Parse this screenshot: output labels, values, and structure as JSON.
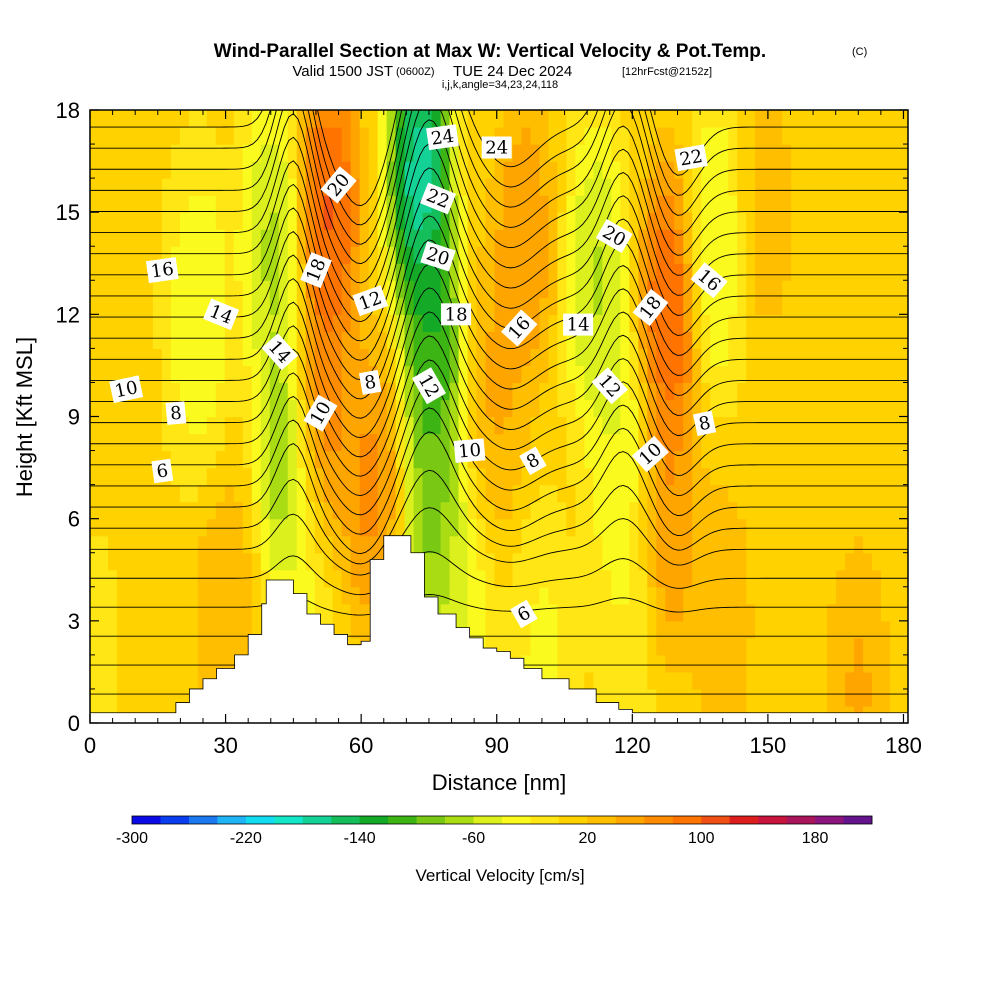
{
  "title": {
    "main": "Wind-Parallel Section at Max W: Vertical Velocity & Pot.Temp.",
    "main_tag": "(C)",
    "valid_prefix": "Valid 1500 JST",
    "valid_utc": "(0600Z)",
    "valid_date": "TUE 24 Dec 2024",
    "forecast_tag": "[12hrFcst@2152z]",
    "params": "i,j,k,angle=34,23,24,118"
  },
  "chart_data": {
    "type": "heatmap",
    "xlabel": "Distance [nm]",
    "ylabel": "Height [Kft MSL]",
    "xlim": [
      0,
      181
    ],
    "ylim": [
      0,
      18
    ],
    "xticks": [
      0,
      30,
      60,
      90,
      120,
      150,
      180
    ],
    "yticks": [
      0,
      3,
      6,
      9,
      12,
      15,
      18
    ],
    "grid": false,
    "colorbar": {
      "title": "Vertical Velocity [cm/s]",
      "placement": "bottom",
      "tick_labels": [
        "-300",
        "-220",
        "-140",
        "-60",
        "20",
        "100",
        "180"
      ],
      "tick_values": [
        -300,
        -220,
        -140,
        -60,
        20,
        100,
        180
      ],
      "bin_edges": [
        -300,
        -280,
        -260,
        -240,
        -220,
        -200,
        -180,
        -160,
        -140,
        -120,
        -100,
        -80,
        -60,
        -40,
        -20,
        0,
        20,
        40,
        60,
        80,
        100,
        120,
        140,
        160,
        180,
        200,
        220
      ],
      "bin_colors": [
        "#0a0ae6",
        "#0a3cf0",
        "#1a78f0",
        "#1eb4f5",
        "#14dcf0",
        "#14e6c8",
        "#14d296",
        "#14be5a",
        "#14aa28",
        "#3cb414",
        "#78c814",
        "#aadc14",
        "#dcf01e",
        "#fafa1e",
        "#ffe614",
        "#ffd200",
        "#ffbe00",
        "#ffa500",
        "#ff8c00",
        "#ff7300",
        "#f05014",
        "#dc1e1e",
        "#c8143c",
        "#aa145a",
        "#8c147d",
        "#64148c"
      ]
    },
    "vertical_velocity_field": {
      "units": "cm/s",
      "background": 5,
      "features": [
        {
          "x": 0,
          "z": 1.5,
          "value": -15
        },
        {
          "x": 24,
          "z": 12,
          "value": -60
        },
        {
          "x": 30,
          "z": 3,
          "value": 45
        },
        {
          "x": 40,
          "z": 14,
          "value": -90
        },
        {
          "x": 44,
          "z": 8,
          "value": -130
        },
        {
          "x": 47,
          "z": 4.5,
          "value": -40
        },
        {
          "x": 50,
          "z": 9,
          "value": 110
        },
        {
          "x": 53,
          "z": 15,
          "value": 130
        },
        {
          "x": 62,
          "z": 7,
          "value": 80
        },
        {
          "x": 73,
          "z": 16,
          "value": -240
        },
        {
          "x": 76,
          "z": 11,
          "value": -160
        },
        {
          "x": 76,
          "z": 6,
          "value": -120
        },
        {
          "x": 82,
          "z": 2.5,
          "value": -60
        },
        {
          "x": 90,
          "z": 10,
          "value": 50
        },
        {
          "x": 96,
          "z": 14,
          "value": 70
        },
        {
          "x": 100,
          "z": 1.5,
          "value": -40
        },
        {
          "x": 112,
          "z": 13,
          "value": -90
        },
        {
          "x": 117,
          "z": 8,
          "value": -60
        },
        {
          "x": 119,
          "z": 3,
          "value": -30
        },
        {
          "x": 128,
          "z": 12,
          "value": 130
        },
        {
          "x": 128,
          "z": 6,
          "value": 70
        },
        {
          "x": 138,
          "z": 14,
          "value": -60
        },
        {
          "x": 140,
          "z": 3,
          "value": 40
        },
        {
          "x": 150,
          "z": 15,
          "value": 30
        },
        {
          "x": 170,
          "z": 1,
          "value": 50
        }
      ]
    },
    "terrain_profile": {
      "x": [
        0,
        19,
        22,
        25,
        28,
        32,
        35,
        38,
        39,
        42,
        45,
        48,
        51,
        54,
        57,
        60,
        62,
        65,
        71,
        74,
        77,
        81,
        84,
        87,
        90,
        93,
        96,
        100,
        106,
        112,
        117,
        120,
        181
      ],
      "z": [
        0.3,
        0.6,
        1.0,
        1.3,
        1.6,
        2.0,
        2.6,
        3.5,
        4.2,
        4.2,
        3.8,
        3.2,
        2.9,
        2.6,
        2.3,
        2.4,
        4.8,
        5.5,
        5.0,
        3.7,
        3.2,
        2.8,
        2.5,
        2.2,
        2.1,
        1.9,
        1.6,
        1.3,
        1.0,
        0.6,
        0.4,
        0.3,
        0.3
      ]
    },
    "potential_temperature_contours": {
      "units": "C",
      "levels": [
        0,
        1,
        2,
        3,
        4,
        5,
        6,
        7,
        8,
        9,
        10,
        11,
        12,
        13,
        14,
        15,
        16,
        17,
        18,
        19,
        20,
        21,
        22,
        23,
        24,
        25,
        26
      ],
      "labels": [
        {
          "text": "24",
          "x": 78,
          "z": 17.2,
          "angle": -8
        },
        {
          "text": "24",
          "x": 90,
          "z": 16.9,
          "angle": 0
        },
        {
          "text": "22",
          "x": 133,
          "z": 16.6,
          "angle": -10
        },
        {
          "text": "20",
          "x": 55,
          "z": 15.8,
          "angle": -50
        },
        {
          "text": "22",
          "x": 77,
          "z": 15.4,
          "angle": 22
        },
        {
          "text": "20",
          "x": 116,
          "z": 14.3,
          "angle": 30
        },
        {
          "text": "16",
          "x": 16,
          "z": 13.3,
          "angle": -8
        },
        {
          "text": "18",
          "x": 50,
          "z": 13.3,
          "angle": -68
        },
        {
          "text": "20",
          "x": 77,
          "z": 13.7,
          "angle": 18
        },
        {
          "text": "16",
          "x": 137,
          "z": 13.0,
          "angle": 40
        },
        {
          "text": "14",
          "x": 29,
          "z": 12.0,
          "angle": 22
        },
        {
          "text": "12",
          "x": 62,
          "z": 12.4,
          "angle": -20
        },
        {
          "text": "18",
          "x": 81,
          "z": 12.0,
          "angle": 0
        },
        {
          "text": "16",
          "x": 95,
          "z": 11.6,
          "angle": -48
        },
        {
          "text": "14",
          "x": 108,
          "z": 11.7,
          "angle": 0
        },
        {
          "text": "18",
          "x": 124,
          "z": 12.2,
          "angle": -52
        },
        {
          "text": "14",
          "x": 42,
          "z": 10.9,
          "angle": 48
        },
        {
          "text": "12",
          "x": 75,
          "z": 9.9,
          "angle": 60
        },
        {
          "text": "12",
          "x": 115,
          "z": 9.9,
          "angle": 48
        },
        {
          "text": "10",
          "x": 8,
          "z": 9.8,
          "angle": -12
        },
        {
          "text": "8",
          "x": 62,
          "z": 10.0,
          "angle": -10
        },
        {
          "text": "8",
          "x": 19,
          "z": 9.1,
          "angle": -5
        },
        {
          "text": "10",
          "x": 51,
          "z": 9.1,
          "angle": -60
        },
        {
          "text": "8",
          "x": 136,
          "z": 8.8,
          "angle": -12
        },
        {
          "text": "10",
          "x": 84,
          "z": 8.0,
          "angle": -5
        },
        {
          "text": "10",
          "x": 124,
          "z": 7.9,
          "angle": -42
        },
        {
          "text": "8",
          "x": 98,
          "z": 7.7,
          "angle": -30
        },
        {
          "text": "6",
          "x": 16,
          "z": 7.4,
          "angle": -8
        },
        {
          "text": "6",
          "x": 96,
          "z": 3.2,
          "angle": -30
        }
      ]
    }
  }
}
